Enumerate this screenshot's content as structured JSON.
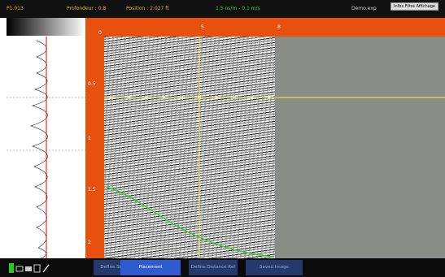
{
  "header": {
    "profile": "P1.013",
    "depth": "Profondeur : 0.8",
    "position": "Position : 2.027 ft",
    "velocity": "1.5 ns/m - 0.1 m/s",
    "file": "Demo.exp",
    "info": "Infos Filtre Affichage"
  },
  "axes": {
    "depth_labels": [
      "0.5",
      "1",
      "1.5",
      "2"
    ],
    "distance_labels": [
      "0",
      "5",
      "8"
    ]
  },
  "toolbar": {
    "buttons": [
      "Define Start",
      "Placement",
      "Define Distance Ref",
      "Saved Image"
    ]
  }
}
